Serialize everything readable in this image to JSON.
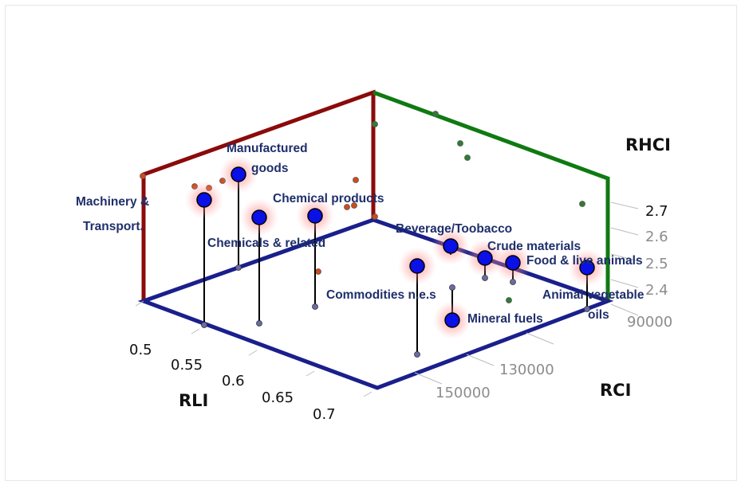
{
  "chart_data": {
    "type": "scatter",
    "axes": {
      "x": {
        "title": "RLI",
        "ticks": [
          "0.5",
          "0.55",
          "0.6",
          "0.65",
          "0.7"
        ],
        "range": [
          0.48,
          0.72
        ]
      },
      "y": {
        "title": "RCI",
        "ticks": [
          "90000",
          "130000",
          "150000"
        ],
        "range": [
          70000,
          170000
        ]
      },
      "z": {
        "title": "RHCI",
        "ticks": [
          "2.4",
          "2.5",
          "2.6",
          "2.7"
        ],
        "range": [
          2.0,
          2.8
        ]
      }
    },
    "points": [
      {
        "label": "Machinery & Transport.",
        "rli": 0.53,
        "rci": 80000,
        "rhci": 2.55
      },
      {
        "label": "Manufactured goods",
        "rli": 0.56,
        "rci": 93000,
        "rhci": 2.47
      },
      {
        "label": "Chemical products",
        "rli": 0.64,
        "rci": 93000,
        "rhci": 2.52
      },
      {
        "label": "Chemicals & related",
        "rli": 0.61,
        "rci": 83000,
        "rhci": 2.51
      },
      {
        "label": "Beverage/Toobacco",
        "rli": 0.7,
        "rci": 138000,
        "rhci": 2.55
      },
      {
        "label": "Crude materials",
        "rli": 0.7,
        "rci": 146000,
        "rhci": 2.41
      },
      {
        "label": "Food & live animals",
        "rli": 0.7,
        "rci": 150000,
        "rhci": 2.41
      },
      {
        "label": "Commodities n.e.s",
        "rli": 0.72,
        "rci": 121000,
        "rhci": 2.68
      },
      {
        "label": "Mineral fuels",
        "rli": 0.71,
        "rci": 144500,
        "rhci": 2.1
      },
      {
        "label": "Animal vegetable oils",
        "rli": 0.72,
        "rci": 170000,
        "rhci": 2.17
      }
    ]
  },
  "labels": {
    "machinery_line1": "Machinery &",
    "machinery_line2": "Transport.",
    "manufactured_line1": "Manufactured",
    "manufactured_line2": "goods",
    "chemical_products": "Chemical products",
    "chemicals_related": "Chemicals & related",
    "beverage": "Beverage/Toobacco",
    "crude": "Crude materials",
    "food": "Food & live animals",
    "commodities": "Commodities n.e.s",
    "mineral": "Mineral fuels",
    "animal_line1": "Animal vegetable",
    "animal_line2": "oils"
  },
  "colors": {
    "point_fill": "#0a10e6",
    "point_glow": "#ff6b6b",
    "axis_blue": "#1a1f8c",
    "axis_red": "#8b0a0a",
    "axis_green": "#0f7a12",
    "drop_line": "#000000",
    "projection_red": "#c0501f",
    "projection_blue": "#5a5a9a",
    "projection_green": "#2e7d32"
  }
}
